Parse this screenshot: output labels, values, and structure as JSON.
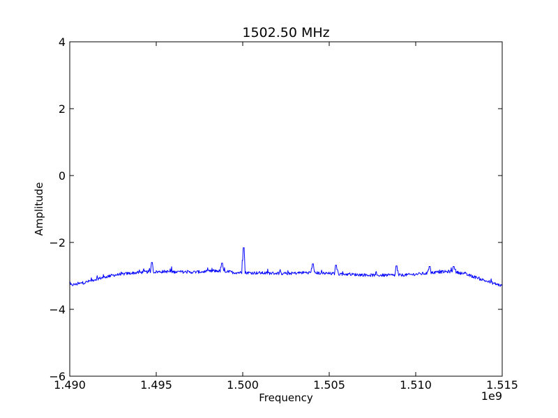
{
  "chart_data": {
    "type": "line",
    "title": "1502.50 MHz",
    "xlabel": "Frequency",
    "ylabel": "Amplitude",
    "x_offset_label": "1e9",
    "xlim": [
      1.49,
      1.515
    ],
    "ylim": [
      -6,
      4
    ],
    "xticks": [
      1.49,
      1.495,
      1.5,
      1.505,
      1.51,
      1.515
    ],
    "xtick_labels": [
      "1.490",
      "1.495",
      "1.500",
      "1.505",
      "1.510",
      "1.515"
    ],
    "yticks": [
      -6,
      -4,
      -2,
      0,
      2,
      4
    ],
    "ytick_labels": [
      "−6",
      "−4",
      "−2",
      "0",
      "2",
      "4"
    ],
    "grid": false,
    "series": [
      {
        "color": "#0000ff",
        "x": [
          1.49,
          1.4905,
          1.491,
          1.4915,
          1.492,
          1.4925,
          1.493,
          1.4935,
          1.494,
          1.4945,
          1.495,
          1.4955,
          1.496,
          1.4965,
          1.497,
          1.4975,
          1.498,
          1.4985,
          1.499,
          1.4995,
          1.5,
          1.5005,
          1.501,
          1.5015,
          1.502,
          1.5025,
          1.503,
          1.5035,
          1.504,
          1.5045,
          1.505,
          1.5055,
          1.506,
          1.5065,
          1.507,
          1.5075,
          1.508,
          1.5085,
          1.509,
          1.5095,
          1.51,
          1.5105,
          1.511,
          1.5115,
          1.512,
          1.5125,
          1.513,
          1.5135,
          1.514,
          1.5145,
          1.515
        ],
        "y": [
          -3.28,
          -3.24,
          -3.18,
          -3.1,
          -3.04,
          -2.98,
          -2.95,
          -2.92,
          -2.9,
          -2.88,
          -2.88,
          -2.87,
          -2.88,
          -2.88,
          -2.89,
          -2.88,
          -2.87,
          -2.85,
          -2.86,
          -2.9,
          -2.9,
          -2.91,
          -2.91,
          -2.92,
          -2.92,
          -2.93,
          -2.92,
          -2.9,
          -2.9,
          -2.92,
          -2.93,
          -2.94,
          -2.95,
          -2.96,
          -2.97,
          -2.98,
          -2.98,
          -2.98,
          -2.98,
          -2.97,
          -2.95,
          -2.93,
          -2.9,
          -2.88,
          -2.87,
          -2.9,
          -2.97,
          -3.05,
          -3.14,
          -3.22,
          -3.3
        ],
        "peaks": [
          {
            "x": 1.49475,
            "y": -2.6
          },
          {
            "x": 1.4988,
            "y": -2.62
          },
          {
            "x": 1.50005,
            "y": -2.16
          },
          {
            "x": 1.50405,
            "y": -2.64
          },
          {
            "x": 1.5054,
            "y": -2.68
          },
          {
            "x": 1.5089,
            "y": -2.7
          },
          {
            "x": 1.5108,
            "y": -2.72
          },
          {
            "x": 1.5122,
            "y": -2.72
          }
        ]
      }
    ]
  }
}
